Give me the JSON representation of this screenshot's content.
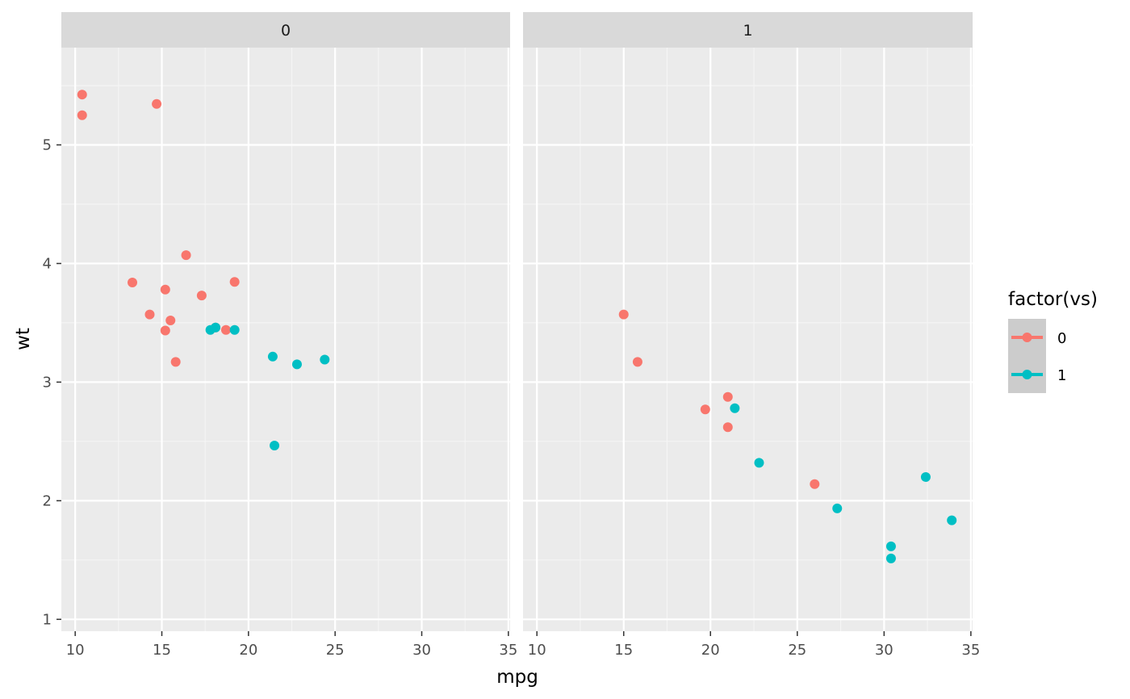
{
  "chart_data": {
    "type": "scatter",
    "facet_variable": "am",
    "xlabel": "mpg",
    "ylabel": "wt",
    "xlim": [
      9.2,
      35.1
    ],
    "ylim": [
      0.9,
      5.82
    ],
    "x_ticks": [
      10,
      15,
      20,
      25,
      30,
      35
    ],
    "y_ticks": [
      1,
      2,
      3,
      4,
      5
    ],
    "grid": true,
    "legend": {
      "title": "factor(vs)",
      "placement": "right",
      "entries": [
        {
          "label": "0",
          "color": "#F8766D"
        },
        {
          "label": "1",
          "color": "#00BFC4"
        }
      ]
    },
    "colors": {
      "panel_bg": "#EBEBEB",
      "strip_bg": "#D9D9D9",
      "grid_major": "#FFFFFF",
      "grid_minor": "#F5F5F5",
      "legend_key_bg": "#CCCCCC"
    },
    "panels": [
      {
        "strip": "0",
        "series": [
          {
            "name": "0",
            "color": "#F8766D",
            "points": [
              [
                18.7,
                3.44
              ],
              [
                18.1,
                3.46
              ],
              [
                14.3,
                3.57
              ],
              [
                16.4,
                4.07
              ],
              [
                17.3,
                3.73
              ],
              [
                15.2,
                3.78
              ],
              [
                10.4,
                5.25
              ],
              [
                10.4,
                5.424
              ],
              [
                14.7,
                5.345
              ],
              [
                15.5,
                3.52
              ],
              [
                15.2,
                3.435
              ],
              [
                13.3,
                3.84
              ],
              [
                19.2,
                3.845
              ],
              [
                15.8,
                3.17
              ]
            ]
          },
          {
            "name": "1",
            "color": "#00BFC4",
            "points": [
              [
                21.4,
                3.215
              ],
              [
                18.1,
                3.46
              ],
              [
                24.4,
                3.19
              ],
              [
                22.8,
                3.15
              ],
              [
                19.2,
                3.44
              ],
              [
                17.8,
                3.44
              ],
              [
                21.5,
                2.465
              ]
            ]
          }
        ]
      },
      {
        "strip": "1",
        "series": [
          {
            "name": "0",
            "color": "#F8766D",
            "points": [
              [
                21.0,
                2.62
              ],
              [
                21.0,
                2.875
              ],
              [
                26.0,
                2.14
              ],
              [
                15.8,
                3.17
              ],
              [
                19.7,
                2.77
              ],
              [
                15.0,
                3.57
              ]
            ]
          },
          {
            "name": "1",
            "color": "#00BFC4",
            "points": [
              [
                22.8,
                2.32
              ],
              [
                32.4,
                2.2
              ],
              [
                30.4,
                1.615
              ],
              [
                33.9,
                1.835
              ],
              [
                27.3,
                1.935
              ],
              [
                30.4,
                1.513
              ],
              [
                21.4,
                2.78
              ]
            ]
          }
        ]
      }
    ]
  }
}
